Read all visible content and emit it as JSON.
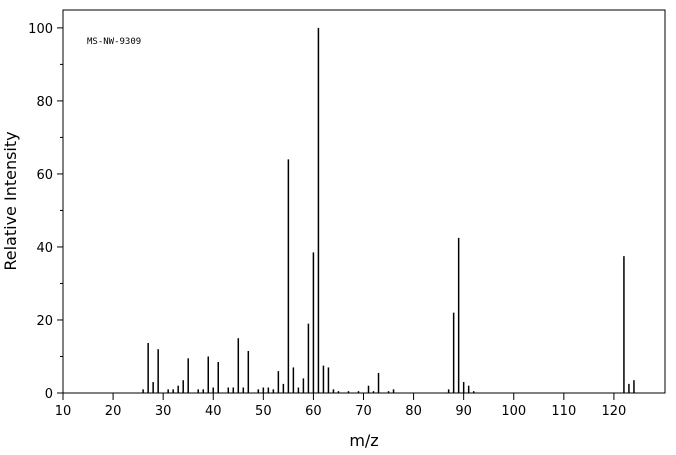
{
  "chart_data": {
    "type": "stem",
    "annotation": "MS-NW-9309",
    "xlabel": "m/z",
    "ylabel": "Relative Intensity",
    "x": [
      26,
      27,
      28,
      29,
      31,
      32,
      33,
      34,
      35,
      37,
      38,
      39,
      40,
      41,
      43,
      44,
      45,
      46,
      47,
      49,
      50,
      51,
      52,
      53,
      54,
      55,
      56,
      57,
      58,
      59,
      60,
      61,
      62,
      63,
      64,
      65,
      67,
      69,
      71,
      72,
      73,
      75,
      76,
      87,
      88,
      89,
      90,
      91,
      92,
      122,
      123,
      124
    ],
    "values": [
      1,
      13.7,
      3,
      12,
      1,
      1,
      2,
      3.5,
      9.5,
      1,
      1,
      10,
      1.5,
      8.5,
      1.5,
      1.5,
      15,
      1.5,
      11.5,
      1,
      1.5,
      1.5,
      1,
      6,
      2.5,
      64,
      7,
      1.5,
      4,
      19,
      38.5,
      100,
      7.5,
      7,
      1,
      0.5,
      0.5,
      0.5,
      2,
      0.5,
      5.5,
      0.5,
      1,
      1,
      22,
      42.5,
      3,
      2,
      0.5,
      37.5,
      2.5,
      3.5
    ],
    "color": "#000000",
    "xlim": [
      10,
      130.2
    ],
    "ylim": [
      0,
      104.9
    ],
    "xticks": [
      10,
      20,
      30,
      40,
      50,
      60,
      70,
      80,
      90,
      100,
      110,
      120
    ],
    "yticks": [
      0,
      20,
      40,
      60,
      80,
      100
    ],
    "yminorticks": [
      10,
      30,
      50,
      70,
      90
    ]
  }
}
